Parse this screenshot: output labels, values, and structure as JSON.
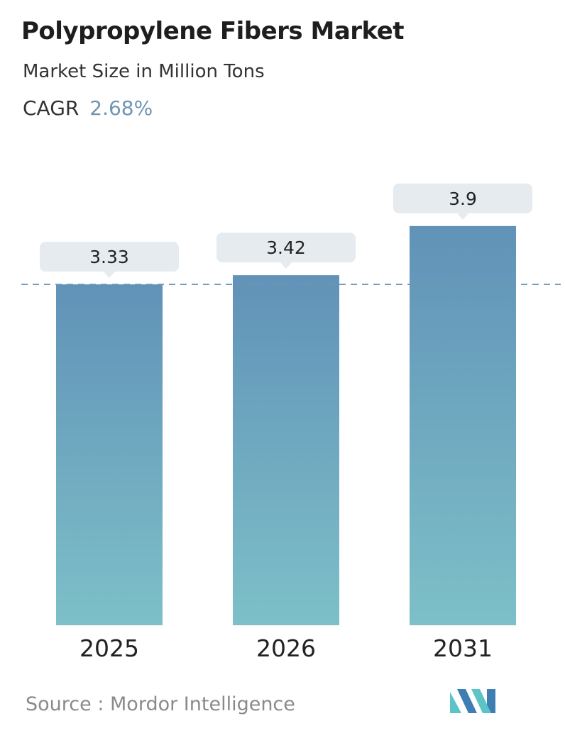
{
  "header": {
    "title": "Polypropylene Fibers Market",
    "subtitle": "Market Size in Million Tons",
    "cagr_label": "CAGR",
    "cagr_value": "2.68%"
  },
  "chart_data": {
    "type": "bar",
    "categories": [
      "2025",
      "2026",
      "2031"
    ],
    "values": [
      3.33,
      3.42,
      3.9
    ],
    "value_labels": [
      "3.33",
      "3.42",
      "3.9"
    ],
    "title": "Polypropylene Fibers Market",
    "subtitle": "Market Size in Million Tons",
    "reference_line": 3.33,
    "grid": false,
    "legend": "none"
  },
  "colors": {
    "bar_top": "#6192b8",
    "bar_bottom": "#7dc0c8",
    "label_bg": "#e6ebef",
    "cagr_value": "#6f95b4",
    "reference_line": "#6f95b4",
    "logo_light": "#5cc3c7",
    "logo_dark": "#3e7fb3"
  },
  "footer": {
    "source_label": "Source :",
    "source_name": "Mordor Intelligence"
  }
}
